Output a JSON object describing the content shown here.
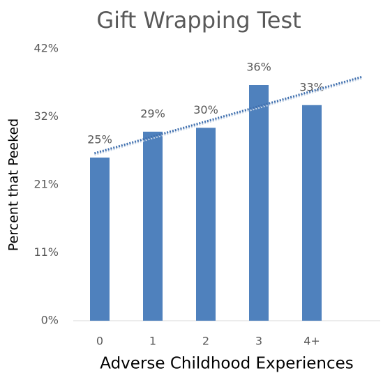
{
  "chart_data": {
    "type": "bar",
    "title": "Gift Wrapping Test",
    "x_label": "Adverse Childhood Experiences",
    "y_label": "Percent that Peeked",
    "categories": [
      "0",
      "1",
      "2",
      "3",
      "4+"
    ],
    "values": [
      25.2,
      29.2,
      29.8,
      36.4,
      33.3
    ],
    "value_labels": [
      "25%",
      "29%",
      "30%",
      "36%",
      "33%"
    ],
    "color": "#4f81bd",
    "trendline": "linear",
    "ylim": [
      0,
      42
    ],
    "yticks": [
      {
        "value": 0,
        "label": "0%"
      },
      {
        "value": 10.5,
        "label": "11%"
      },
      {
        "value": 21,
        "label": "21%"
      },
      {
        "value": 31.5,
        "label": "32%"
      },
      {
        "value": 42,
        "label": "42%"
      }
    ]
  }
}
